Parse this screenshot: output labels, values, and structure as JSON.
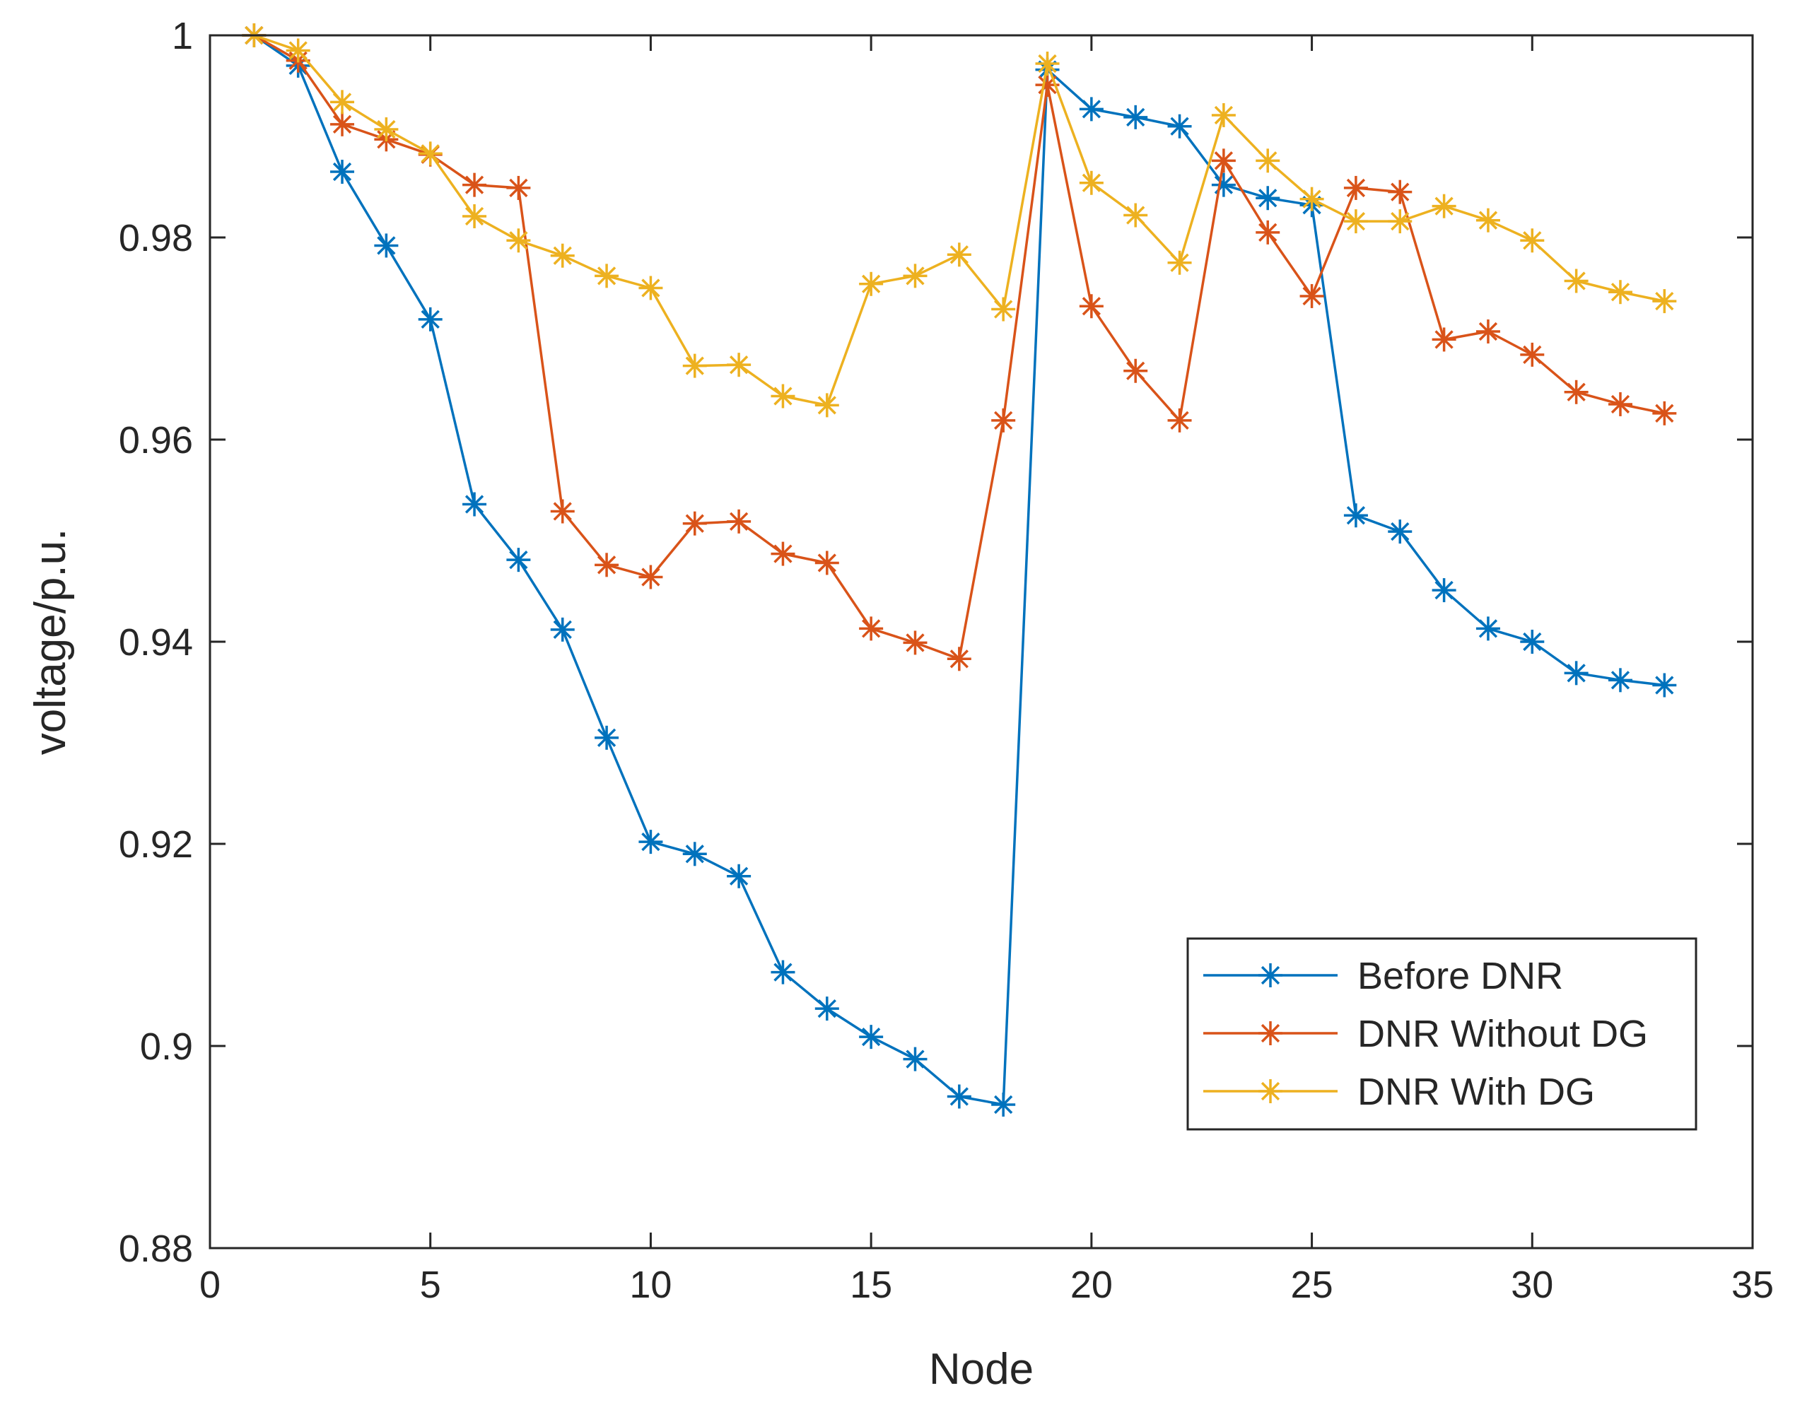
{
  "chart_data": {
    "type": "line",
    "title": "",
    "xlabel": "Node",
    "ylabel": "voltage/p.u.",
    "xlim": [
      0,
      35
    ],
    "ylim": [
      0.88,
      1.0
    ],
    "xticks": [
      0,
      5,
      10,
      15,
      20,
      25,
      30,
      35
    ],
    "yticks": [
      0.88,
      0.9,
      0.92,
      0.94,
      0.96,
      0.98,
      1.0
    ],
    "xtick_labels": [
      "0",
      "5",
      "10",
      "15",
      "20",
      "25",
      "30",
      "35"
    ],
    "ytick_labels": [
      "0.88",
      "0.9",
      "0.92",
      "0.94",
      "0.96",
      "0.98",
      "1"
    ],
    "grid": false,
    "legend_position": "bottom-right",
    "x": [
      1,
      2,
      3,
      4,
      5,
      6,
      7,
      8,
      9,
      10,
      11,
      12,
      13,
      14,
      15,
      16,
      17,
      18,
      19,
      20,
      21,
      22,
      23,
      24,
      25,
      26,
      27,
      28,
      29,
      30,
      31,
      32,
      33
    ],
    "series": [
      {
        "name": "Before DNR",
        "color": "#0072BD",
        "marker": "asterisk",
        "values": [
          1.0,
          0.997,
          0.9865,
          0.9792,
          0.9719,
          0.9536,
          0.9481,
          0.9412,
          0.9305,
          0.9202,
          0.919,
          0.9168,
          0.9073,
          0.9037,
          0.9009,
          0.8987,
          0.895,
          0.8942,
          0.9966,
          0.9927,
          0.9919,
          0.991,
          0.9852,
          0.9839,
          0.9832,
          0.9525,
          0.9509,
          0.9451,
          0.9413,
          0.94,
          0.9369,
          0.9362,
          0.9357
        ]
      },
      {
        "name": "DNR Without DG",
        "color": "#D95319",
        "marker": "asterisk",
        "values": [
          1.0,
          0.9975,
          0.9912,
          0.9897,
          0.9882,
          0.9852,
          0.9849,
          0.9529,
          0.9476,
          0.9464,
          0.9517,
          0.9519,
          0.9487,
          0.9478,
          0.9413,
          0.9399,
          0.9383,
          0.9619,
          0.9951,
          0.9732,
          0.9668,
          0.9619,
          0.9876,
          0.9805,
          0.9742,
          0.9849,
          0.9845,
          0.9699,
          0.9707,
          0.9684,
          0.9647,
          0.9635,
          0.9626
        ]
      },
      {
        "name": "DNR With DG",
        "color": "#EDB120",
        "marker": "asterisk",
        "values": [
          1.0,
          0.9985,
          0.9934,
          0.9907,
          0.9883,
          0.9821,
          0.9797,
          0.9782,
          0.9762,
          0.975,
          0.9673,
          0.9674,
          0.9643,
          0.9634,
          0.9754,
          0.9762,
          0.9783,
          0.9729,
          0.9972,
          0.9854,
          0.9822,
          0.9775,
          0.9921,
          0.9876,
          0.9838,
          0.9816,
          0.9816,
          0.9831,
          0.9817,
          0.9797,
          0.9757,
          0.9746,
          0.9737
        ]
      }
    ]
  }
}
